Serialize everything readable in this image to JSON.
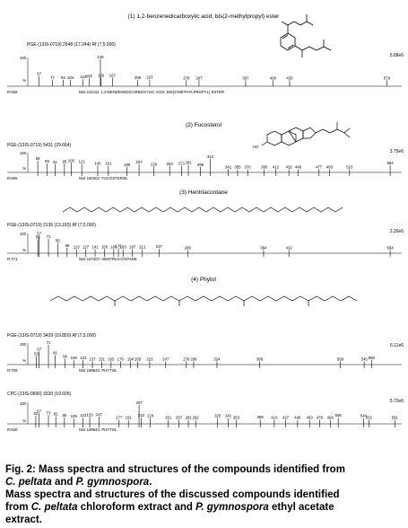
{
  "figure": {
    "panels": [
      {
        "title": "(1) 1,2-benzenedicarboxylic acid, bis(2-methylpropyl) ester",
        "header": "PGE-(13IS-0719) 2948 (17.244) Rf (7,5.000)",
        "scale": "5.68e6",
        "rows": [
          {
            "left": "R:658",
            "lib": "Nist 211411: 1,2-BENZENEDICARBOXYLIC ACID, BIS(2-METHYLPROPYL) ESTER",
            "peaks": [
              [
                57,
                "57",
                22
              ],
              [
                77,
                "77",
                5
              ],
              [
                93,
                "93",
                4
              ],
              [
                104,
                "104",
                5
              ],
              [
                123,
                "123",
                8
              ],
              [
                132,
                "132",
                12
              ],
              [
                149,
                "149",
                100
              ],
              [
                150,
                "150",
                14
              ],
              [
                167,
                "167",
                14
              ],
              [
                205,
                "205",
                5
              ],
              [
                223,
                "223",
                6
              ],
              [
                278,
                "278",
                3
              ],
              [
                297,
                "297",
                3
              ],
              [
                367,
                "367",
                3
              ],
              [
                408,
                "408",
                3
              ],
              [
                433,
                "433",
                3
              ],
              [
                579,
                "579",
                3
              ]
            ]
          }
        ]
      },
      {
        "title": "(2) Fucosterol",
        "header": "PGE-(13IS-0719) 5431 (29.664)",
        "scale": "3.75e6",
        "rows": [
          {
            "left": "R:665",
            "lib": "Nist 160302: FUCOSTEROL",
            "peaks": [
              [
                55,
                "55",
                58
              ],
              [
                69,
                "69",
                42
              ],
              [
                81,
                "81",
                38
              ],
              [
                95,
                "95",
                40
              ],
              [
                105,
                "105",
                46
              ],
              [
                121,
                "121",
                39
              ],
              [
                145,
                "145",
                30
              ],
              [
                161,
                "161",
                28
              ],
              [
                189,
                "189",
                22
              ],
              [
                207,
                "207",
                36
              ],
              [
                229,
                "229",
                24
              ],
              [
                253,
                "253",
                26
              ],
              [
                271,
                "271",
                30
              ],
              [
                281,
                "281",
                34
              ],
              [
                299,
                "299",
                22
              ],
              [
                314,
                "314",
                68
              ],
              [
                341,
                "341",
                8
              ],
              [
                355,
                "355",
                8
              ],
              [
                370,
                "370",
                8
              ],
              [
                395,
                "395",
                8
              ],
              [
                412,
                "412",
                8
              ],
              [
                432,
                "432",
                8
              ],
              [
                446,
                "446",
                8
              ],
              [
                477,
                "477",
                8
              ],
              [
                493,
                "493",
                8
              ],
              [
                523,
                "523",
                8
              ],
              [
                584,
                "584",
                32
              ]
            ]
          }
        ]
      },
      {
        "title": "(3) Hentriacontane",
        "header": "PGE-(13IS-0719) 2136 (13.183) Rf (7,5.000)",
        "scale": "2.26e6",
        "rows": [
          {
            "left": "R:771",
            "lib": "Nist 167207: HENTRIACONTANE",
            "peaks": [
              [
                57,
                "57",
                98
              ],
              [
                55,
                "55",
                76
              ],
              [
                71,
                "71",
                78
              ],
              [
                85,
                "85",
                52
              ],
              [
                99,
                "99",
                22
              ],
              [
                113,
                "113",
                14
              ],
              [
                127,
                "127",
                14
              ],
              [
                141,
                "141",
                14
              ],
              [
                155,
                "155",
                14
              ],
              [
                169,
                "169",
                14
              ],
              [
                176,
                "176",
                20
              ],
              [
                183,
                "183",
                14
              ],
              [
                197,
                "197",
                14
              ],
              [
                212,
                "212",
                14
              ],
              [
                237,
                "237",
                16
              ],
              [
                280,
                "280",
                8
              ],
              [
                394,
                "394",
                8
              ],
              [
                432,
                "432",
                8
              ],
              [
                584,
                "584",
                8
              ]
            ]
          }
        ]
      },
      {
        "title": "(4) Phytol",
        "header": "PGE-(13IS-0719) 3429 (19.850) Rf (7,5.000)",
        "scale": "6.11e6",
        "rows": [
          {
            "left": "R:708",
            "lib": "Nist 199544: PHYTOL",
            "peaks": [
              [
                71,
                "71",
                100
              ],
              [
                57,
                "57",
                62
              ],
              [
                53,
                "53",
                38
              ],
              [
                81,
                "81",
                42
              ],
              [
                96,
                "96",
                22
              ],
              [
                109,
                "109",
                14
              ],
              [
                123,
                "123",
                16
              ],
              [
                137,
                "137",
                8
              ],
              [
                151,
                "151",
                8
              ],
              [
                165,
                "165",
                8
              ],
              [
                179,
                "179",
                8
              ],
              [
                194,
                "194",
                8
              ],
              [
                205,
                "205",
                8
              ],
              [
                223,
                "223",
                8
              ],
              [
                247,
                "247",
                8
              ],
              [
                278,
                "278",
                8
              ],
              [
                289,
                "289",
                8
              ],
              [
                324,
                "324",
                8
              ],
              [
                388,
                "388",
                8
              ],
              [
                509,
                "509",
                8
              ],
              [
                545,
                "545",
                8
              ],
              [
                556,
                "556",
                14
              ]
            ]
          },
          {
            "header": "CPC-(13IS-0690) 3320 (19.605)",
            "scale": "5.72e6",
            "left": "R:820",
            "lib": "Nist 199544: PHYTOL",
            "peaks": [
              [
                57,
                "57",
                48
              ],
              [
                52,
                "52",
                34
              ],
              [
                71,
                "71",
                40
              ],
              [
                82,
                "82",
                32
              ],
              [
                95,
                "95",
                26
              ],
              [
                109,
                "109",
                20
              ],
              [
                123,
                "123",
                24
              ],
              [
                133,
                "133",
                28
              ],
              [
                147,
                "147",
                30
              ],
              [
                177,
                "177",
                12
              ],
              [
                191,
                "191",
                12
              ],
              [
                207,
                "207",
                96
              ],
              [
                210,
                "210",
                24
              ],
              [
                224,
                "224",
                22
              ],
              [
                251,
                "251",
                12
              ],
              [
                267,
                "267",
                12
              ],
              [
                281,
                "281",
                12
              ],
              [
                292,
                "292",
                12
              ],
              [
                325,
                "325",
                22
              ],
              [
                341,
                "341",
                22
              ],
              [
                353,
                "353",
                12
              ],
              [
                389,
                "389",
                14
              ],
              [
                410,
                "410",
                12
              ],
              [
                427,
                "427",
                12
              ],
              [
                445,
                "445",
                12
              ],
              [
                463,
                "463",
                12
              ],
              [
                478,
                "478",
                12
              ],
              [
                494,
                "494",
                12
              ],
              [
                506,
                "506",
                24
              ],
              [
                544,
                "544",
                22
              ],
              [
                552,
                "552",
                12
              ],
              [
                591,
                "591",
                12
              ]
            ]
          }
        ]
      }
    ],
    "axis_top": "100",
    "axis_zero": "%",
    "struct_ring_label": "HO"
  },
  "caption": {
    "line1_prefix": "Fig. 2: Mass spectra and structures of the compounds identified from",
    "line2_species1": "C. peltata",
    "line2_and": " and ",
    "line2_species2": "P. gymnospora",
    "line2_end": ".",
    "line3": "Mass spectra and structures of the discussed compounds identified",
    "line4_from": "from ",
    "line4_species1": "C. peltata",
    "line4_mid": " chloroform extract and ",
    "line4_species2": "P. gymnospora",
    "line4_end": " ethyl acetate",
    "line5": "extract."
  }
}
